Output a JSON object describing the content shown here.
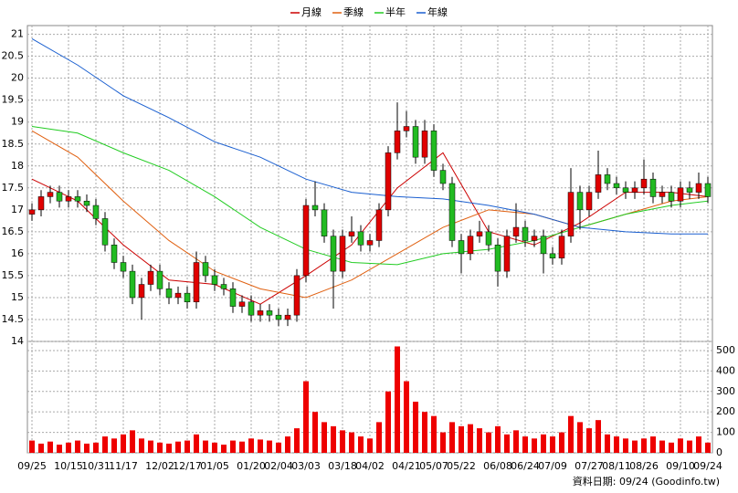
{
  "chart_data": {
    "type": "candlestick",
    "legend": [
      "月線",
      "季線",
      "半年",
      "年線"
    ],
    "footer": "資料日期: 09/24 (Goodinfo.tw)",
    "up_color": "#e00000",
    "down_color": "#22bb22",
    "volume_color": "#ee0000",
    "xlim": [
      -0.5,
      74.5
    ],
    "xticks": [
      {
        "value": 0,
        "label": "09/25"
      },
      {
        "value": 4,
        "label": "10/15"
      },
      {
        "value": 7,
        "label": "10/31"
      },
      {
        "value": 10,
        "label": "11/17"
      },
      {
        "value": 14,
        "label": "12/02"
      },
      {
        "value": 17,
        "label": "12/17"
      },
      {
        "value": 20,
        "label": "01/05"
      },
      {
        "value": 24,
        "label": "01/20"
      },
      {
        "value": 27,
        "label": "02/04"
      },
      {
        "value": 30,
        "label": "03/03"
      },
      {
        "value": 34,
        "label": "03/18"
      },
      {
        "value": 37,
        "label": "04/02"
      },
      {
        "value": 41,
        "label": "04/21"
      },
      {
        "value": 44,
        "label": "05/07"
      },
      {
        "value": 47,
        "label": "05/22"
      },
      {
        "value": 51,
        "label": "06/08"
      },
      {
        "value": 54,
        "label": "06/24"
      },
      {
        "value": 57,
        "label": "07/09"
      },
      {
        "value": 61,
        "label": "07/27"
      },
      {
        "value": 64,
        "label": "08/11"
      },
      {
        "value": 67,
        "label": "08/26"
      },
      {
        "value": 71,
        "label": "09/10"
      },
      {
        "value": 74,
        "label": "09/24"
      }
    ],
    "ylim": [
      14,
      21.2
    ],
    "yticks": [
      14,
      14.5,
      15,
      15.5,
      16,
      16.5,
      17,
      17.5,
      18,
      18.5,
      19,
      19.5,
      20,
      20.5,
      21
    ],
    "y2lim": [
      0,
      540
    ],
    "y2ticks": [
      0,
      100,
      200,
      300,
      400,
      500
    ],
    "grid": true,
    "candles": {
      "open": [
        16.9,
        17.0,
        17.3,
        17.4,
        17.2,
        17.3,
        17.2,
        17.1,
        16.8,
        16.2,
        15.8,
        15.6,
        15.0,
        15.3,
        15.6,
        15.2,
        15.0,
        15.1,
        14.9,
        15.8,
        15.5,
        15.3,
        15.2,
        14.8,
        14.9,
        14.6,
        14.7,
        14.6,
        14.5,
        14.6,
        15.5,
        17.1,
        17.0,
        16.4,
        15.6,
        16.4,
        16.5,
        16.2,
        16.3,
        17.0,
        18.3,
        18.8,
        18.9,
        18.2,
        18.8,
        17.9,
        17.6,
        16.3,
        16.0,
        16.4,
        16.5,
        16.2,
        15.6,
        16.4,
        16.6,
        16.3,
        16.4,
        16.0,
        15.9,
        16.4,
        17.4,
        17.0,
        17.4,
        17.8,
        17.6,
        17.5,
        17.4,
        17.5,
        17.7,
        17.3,
        17.4,
        17.2,
        17.5,
        17.4,
        17.6
      ],
      "high": [
        17.15,
        17.45,
        17.55,
        17.55,
        17.45,
        17.45,
        17.35,
        17.25,
        16.95,
        16.35,
        15.95,
        15.75,
        15.45,
        15.75,
        15.75,
        15.35,
        15.25,
        15.25,
        16.05,
        15.95,
        15.65,
        15.45,
        15.35,
        15.05,
        15.05,
        14.85,
        14.85,
        14.75,
        14.75,
        15.65,
        17.25,
        17.65,
        17.15,
        16.55,
        16.55,
        16.85,
        16.65,
        16.45,
        17.15,
        18.45,
        19.45,
        19.25,
        19.05,
        19.05,
        18.95,
        18.05,
        17.75,
        16.45,
        16.55,
        16.75,
        16.65,
        16.35,
        16.55,
        17.15,
        16.75,
        16.55,
        16.55,
        16.15,
        16.55,
        17.95,
        17.55,
        17.55,
        18.35,
        17.95,
        17.75,
        17.65,
        17.65,
        18.15,
        17.85,
        17.55,
        17.55,
        17.65,
        17.65,
        17.85,
        17.75
      ],
      "low": [
        16.75,
        16.85,
        17.15,
        17.05,
        17.05,
        17.05,
        16.95,
        16.65,
        16.05,
        15.65,
        15.45,
        14.85,
        14.5,
        15.15,
        15.05,
        14.85,
        14.85,
        14.75,
        14.75,
        15.35,
        15.15,
        15.05,
        14.65,
        14.65,
        14.45,
        14.45,
        14.45,
        14.35,
        14.35,
        14.45,
        15.35,
        16.85,
        16.25,
        14.75,
        15.45,
        16.25,
        16.05,
        16.05,
        16.15,
        16.85,
        18.15,
        18.65,
        18.05,
        18.05,
        17.75,
        17.45,
        16.15,
        15.55,
        15.85,
        16.25,
        16.05,
        15.25,
        15.45,
        16.25,
        16.15,
        16.15,
        15.55,
        15.75,
        15.75,
        16.25,
        16.55,
        16.85,
        17.25,
        17.45,
        17.35,
        17.25,
        17.25,
        17.35,
        17.15,
        17.15,
        17.05,
        17.05,
        17.25,
        17.25,
        17.15
      ],
      "close": [
        17.0,
        17.3,
        17.4,
        17.2,
        17.3,
        17.2,
        17.1,
        16.8,
        16.2,
        15.8,
        15.6,
        15.0,
        15.3,
        15.6,
        15.2,
        15.0,
        15.1,
        14.9,
        15.8,
        15.5,
        15.3,
        15.2,
        14.8,
        14.9,
        14.6,
        14.7,
        14.6,
        14.5,
        14.6,
        15.5,
        17.1,
        17.0,
        16.4,
        15.6,
        16.4,
        16.5,
        16.2,
        16.3,
        17.0,
        18.3,
        18.8,
        18.9,
        18.2,
        18.8,
        17.9,
        17.6,
        16.3,
        16.0,
        16.4,
        16.5,
        16.2,
        15.6,
        16.4,
        16.6,
        16.3,
        16.4,
        16.0,
        15.9,
        16.4,
        17.4,
        17.0,
        17.4,
        17.8,
        17.6,
        17.5,
        17.4,
        17.5,
        17.7,
        17.3,
        17.4,
        17.2,
        17.5,
        17.4,
        17.6,
        17.3
      ]
    },
    "volume": [
      60,
      45,
      55,
      40,
      50,
      60,
      45,
      50,
      80,
      70,
      90,
      110,
      70,
      60,
      50,
      45,
      55,
      60,
      90,
      60,
      50,
      40,
      60,
      55,
      70,
      65,
      60,
      50,
      80,
      120,
      350,
      200,
      150,
      130,
      110,
      100,
      80,
      70,
      150,
      300,
      520,
      350,
      250,
      200,
      180,
      100,
      150,
      130,
      140,
      120,
      100,
      130,
      90,
      110,
      80,
      70,
      90,
      80,
      100,
      180,
      150,
      120,
      160,
      90,
      80,
      70,
      60,
      70,
      80,
      60,
      50,
      70,
      60,
      80,
      50
    ],
    "ma_x": [
      0,
      5,
      10,
      15,
      20,
      25,
      30,
      35,
      40,
      45,
      50,
      55,
      60,
      65,
      70,
      74
    ],
    "series": [
      {
        "name": "月線",
        "color": "#cc0000",
        "values": [
          17.7,
          17.2,
          16.2,
          15.4,
          15.3,
          14.85,
          15.5,
          16.2,
          17.5,
          18.3,
          16.5,
          16.2,
          16.7,
          17.4,
          17.4,
          17.3
        ]
      },
      {
        "name": "季線",
        "color": "#e06010",
        "values": [
          18.8,
          18.2,
          17.2,
          16.3,
          15.6,
          15.2,
          15.0,
          15.4,
          16.0,
          16.6,
          17.0,
          16.9,
          16.6,
          16.9,
          17.2,
          17.3
        ]
      },
      {
        "name": "半年",
        "color": "#22cc22",
        "values": [
          18.9,
          18.75,
          18.3,
          17.9,
          17.3,
          16.6,
          16.1,
          15.8,
          15.75,
          16.0,
          16.1,
          16.3,
          16.6,
          16.9,
          17.1,
          17.2
        ]
      },
      {
        "name": "年線",
        "color": "#1a5fd0",
        "values": [
          20.9,
          20.3,
          19.6,
          19.1,
          18.55,
          18.2,
          17.7,
          17.4,
          17.3,
          17.25,
          17.1,
          16.9,
          16.6,
          16.5,
          16.45,
          16.45
        ]
      }
    ]
  }
}
